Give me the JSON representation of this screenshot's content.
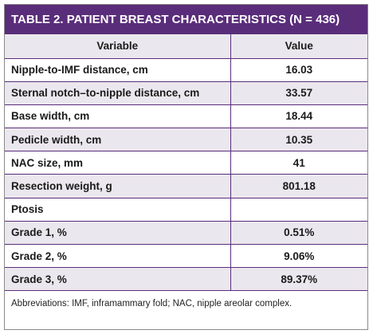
{
  "title": "TABLE 2. PATIENT BREAST CHARACTERISTICS (N = 436)",
  "columns": [
    "Variable",
    "Value"
  ],
  "rows": [
    {
      "variable": "Nipple-to-IMF distance, cm",
      "value": "16.03"
    },
    {
      "variable": "Sternal notch–to-nipple distance, cm",
      "value": "33.57"
    },
    {
      "variable": "Base width, cm",
      "value": "18.44"
    },
    {
      "variable": "Pedicle width, cm",
      "value": "10.35"
    },
    {
      "variable": "NAC size, mm",
      "value": "41"
    },
    {
      "variable": "Resection weight, g",
      "value": "801.18"
    },
    {
      "variable": "Ptosis",
      "value": ""
    },
    {
      "variable": "Grade 1, %",
      "value": "0.51%"
    },
    {
      "variable": "Grade 2, %",
      "value": "9.06%"
    },
    {
      "variable": "Grade 3, %",
      "value": "89.37%"
    }
  ],
  "footnote": "Abbreviations: IMF, inframammary fold; NAC, nipple areolar complex.",
  "colors": {
    "header_bar": "#5a2d7a",
    "stripe": "#ebe7ee",
    "rule": "#5a2d7a"
  }
}
